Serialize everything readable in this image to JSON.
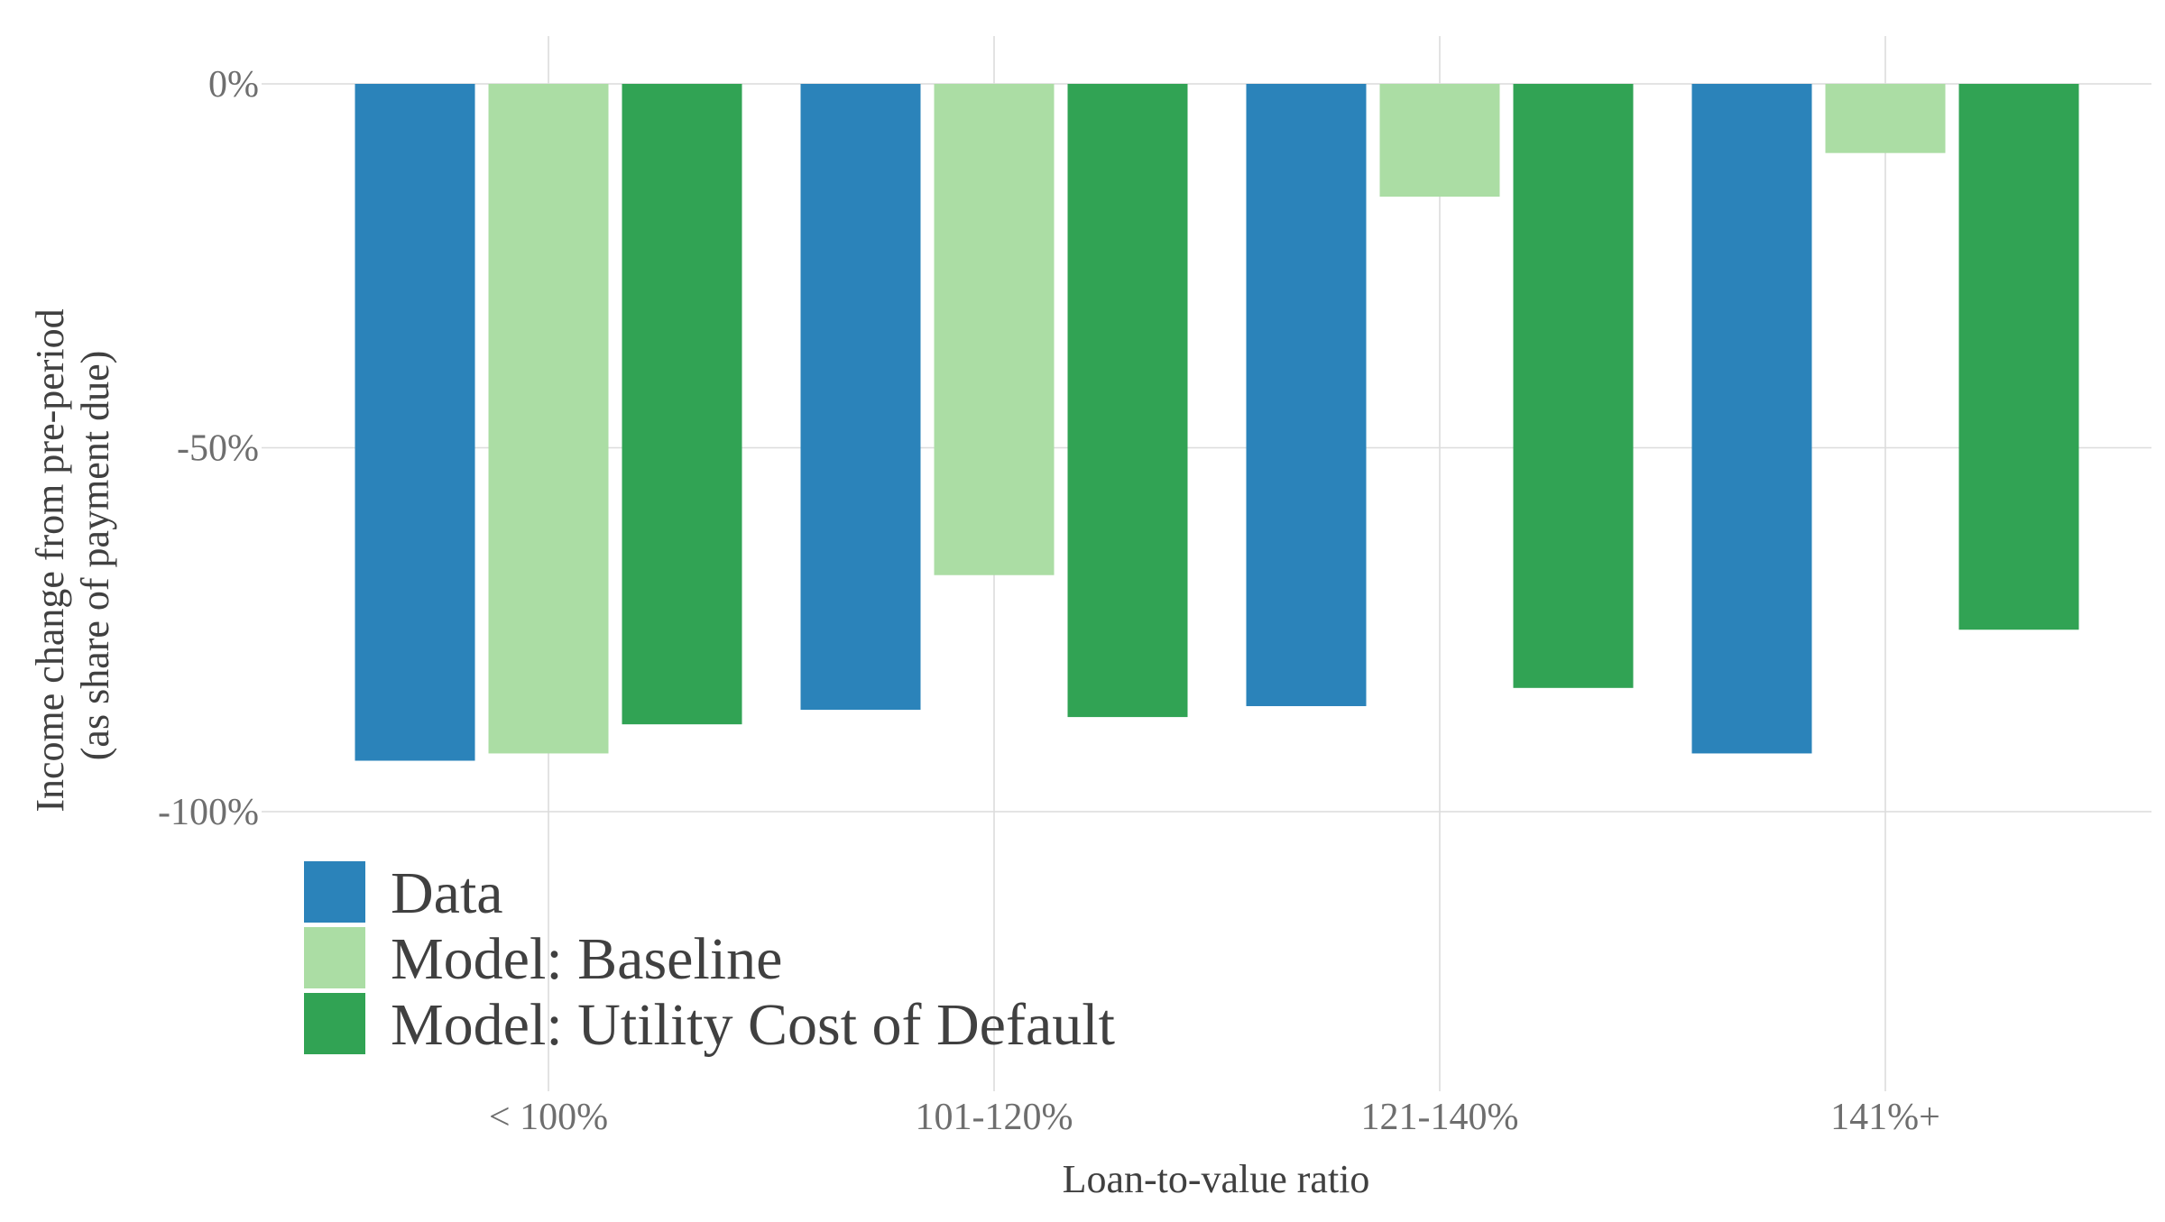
{
  "chart_data": {
    "type": "bar",
    "title": "",
    "xlabel": "Loan-to-value ratio",
    "ylabel": [
      "Income change from pre-period",
      "(as share of payment due)"
    ],
    "categories": [
      "< 100%",
      "101-120%",
      "121-140%",
      "141%+"
    ],
    "series": [
      {
        "name": "Data",
        "color": "#2b83ba",
        "values": [
          -93,
          -86,
          -85.5,
          -92
        ]
      },
      {
        "name": "Model: Baseline",
        "color": "#abdda4",
        "values": [
          -92,
          -67.5,
          -15.5,
          -9.5
        ]
      },
      {
        "name": "Model: Utility Cost of Default",
        "color": "#31a354",
        "values": [
          -88,
          -87,
          -83,
          -75
        ]
      }
    ],
    "ylim": [
      -100,
      0
    ],
    "yticks": [
      {
        "value": 0,
        "label": "0%"
      },
      {
        "value": -50,
        "label": "-50%"
      },
      {
        "value": -100,
        "label": "-100%"
      }
    ],
    "grid": true,
    "legend_position": "bottom-left"
  }
}
